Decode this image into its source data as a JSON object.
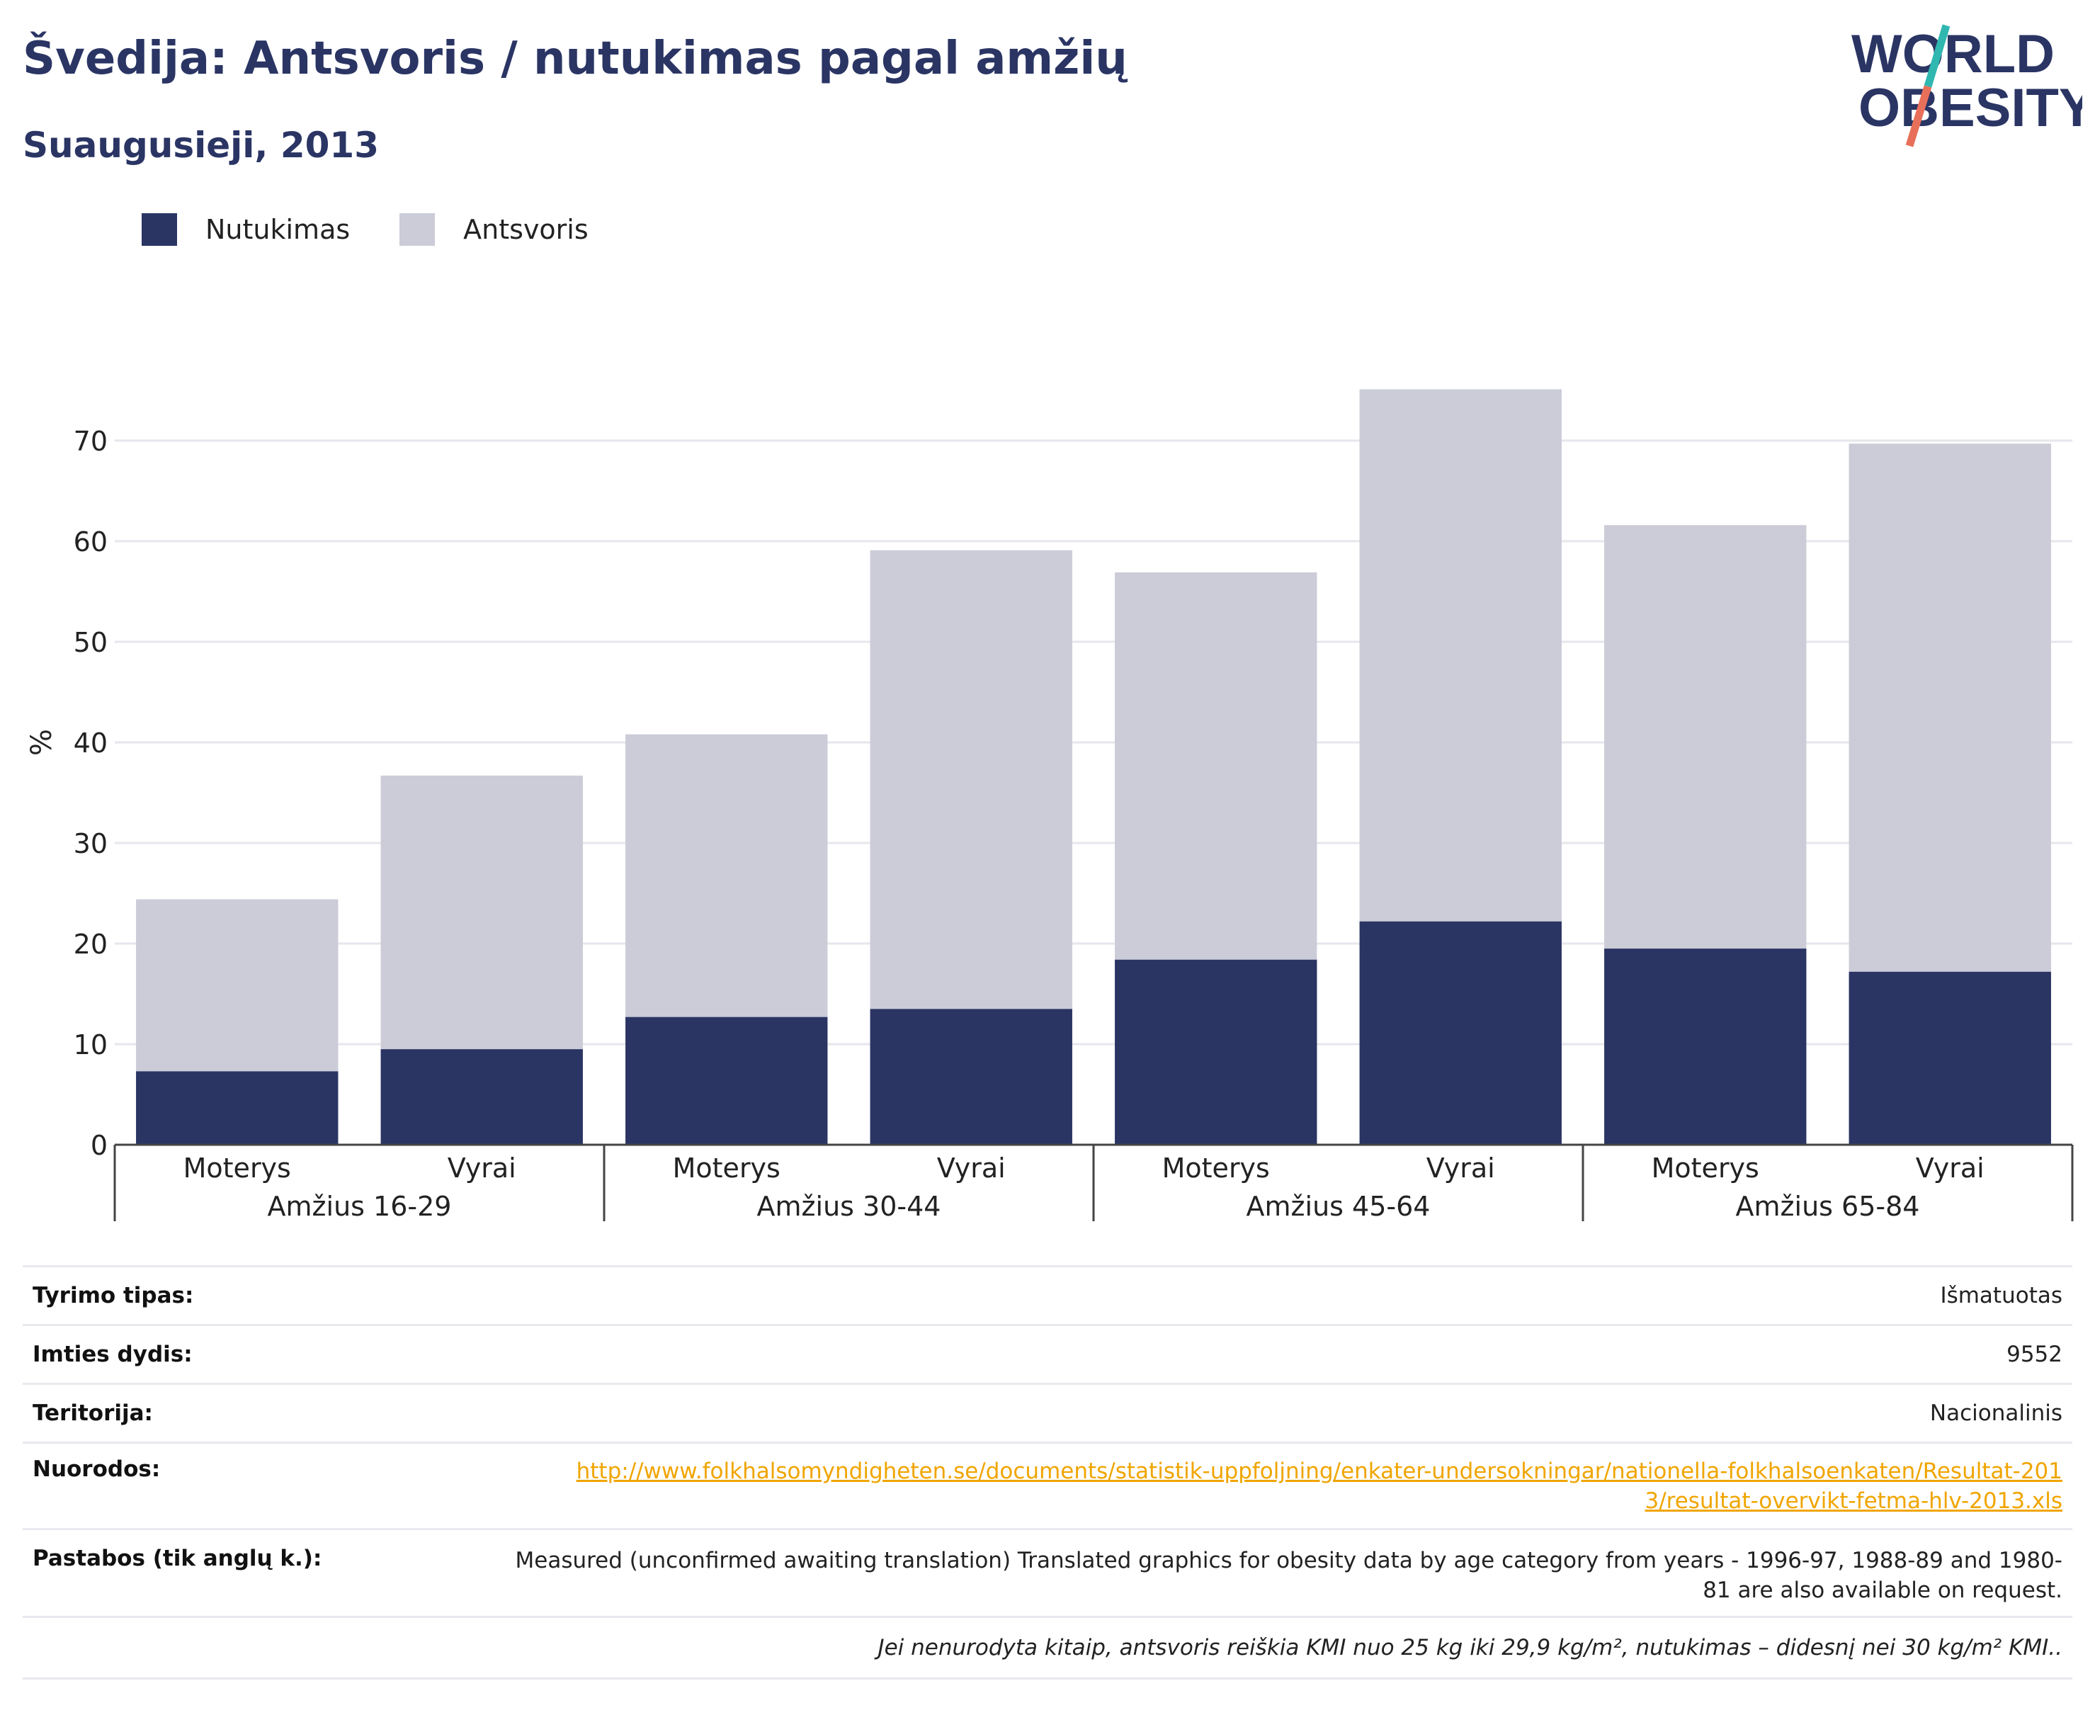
{
  "header": {
    "title": "Švedija: Antsvoris / nutukimas pagal amžių",
    "subtitle": "Suaugusieji, 2013"
  },
  "logo": {
    "line1": "WORLD",
    "line2": "OBESITY",
    "colors": {
      "text": "#2a3564",
      "slash_teal": "#2fb7b0",
      "slash_coral": "#e8705a"
    }
  },
  "colors": {
    "obesity": "#2a3564",
    "overweight": "#cbccd8",
    "axis": "#444444",
    "grid": "#e6e6ec",
    "link": "#f0a500"
  },
  "chart_data": {
    "type": "bar",
    "stacked": true,
    "categories": [
      "Moterys",
      "Vyrai",
      "Moterys",
      "Vyrai",
      "Moterys",
      "Vyrai",
      "Moterys",
      "Vyrai"
    ],
    "groups": [
      "Amžius 16-29",
      "Amžius 30-44",
      "Amžius 45-64",
      "Amžius 65-84"
    ],
    "series": [
      {
        "name": "Nutukimas",
        "values": [
          7.3,
          9.5,
          12.7,
          13.5,
          18.4,
          22.2,
          19.5,
          17.2
        ]
      },
      {
        "name": "Antsvoris",
        "values": [
          17.1,
          27.2,
          28.1,
          45.6,
          38.5,
          52.9,
          42.1,
          52.5
        ]
      }
    ],
    "ylabel": "%",
    "xlabel": "",
    "ylim": [
      0,
      80
    ],
    "yticks": [
      0,
      10,
      20,
      30,
      40,
      50,
      60,
      70
    ],
    "grid": true,
    "legend_position": "top-left"
  },
  "info": {
    "rows": [
      {
        "label": "Tyrimo tipas:",
        "value": "Išmatuotas"
      },
      {
        "label": "Imties dydis:",
        "value": "9552"
      },
      {
        "label": "Teritorija:",
        "value": "Nacionalinis"
      },
      {
        "label": "Nuorodos:",
        "value": "http://www.folkhalsomyndigheten.se/documents/statistik-uppfoljning/enkater-undersokningar/nationella-folkhalsoenkaten/Resultat-2013/resultat-overvikt-fetma-hlv-2013.xls"
      },
      {
        "label": "Pastabos (tik anglų k.):",
        "value": "Measured (unconfirmed awaiting translation) Translated graphics for obesity data by age category from years - 1996-97, 1988-89 and 1980-81 are also available on request."
      }
    ],
    "footnote": "Jei nenurodyta kitaip, antsvoris reiškia KMI nuo 25 kg iki 29,9 kg/m², nutukimas – didesnį nei 30 kg/m² KMI.."
  }
}
